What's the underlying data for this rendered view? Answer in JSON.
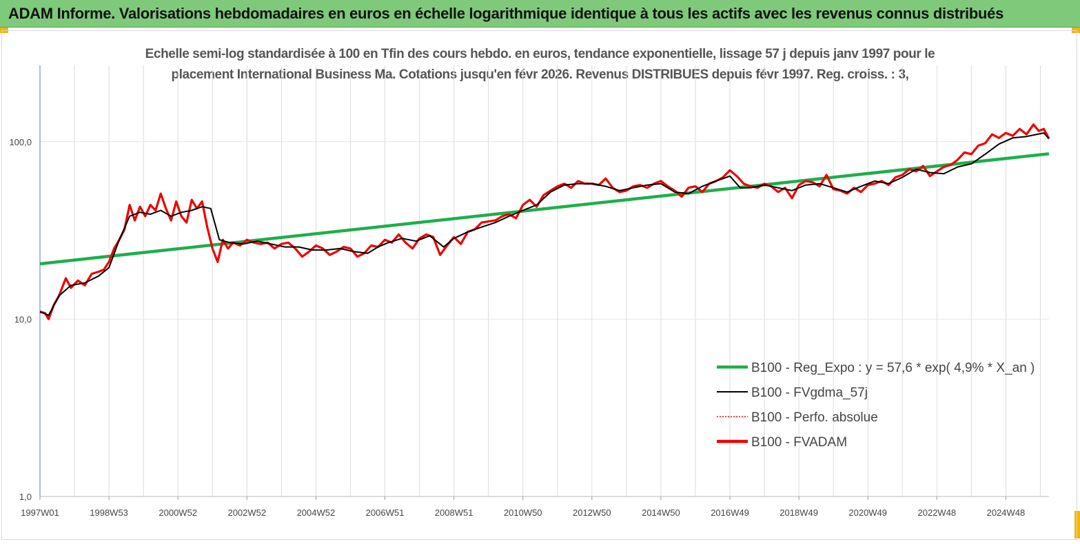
{
  "header": {
    "title": "ADAM Informe. Valorisations hebdomadaires en euros en échelle logarithmique identique à tous les actifs avec les revenus connus distribués"
  },
  "chart_data": {
    "type": "line",
    "title_line1": "Echelle semi-log standardisée à 100 en Tfin des cours hebdo. en euros, tendance exponentielle, lissage 57 j depuis janv 1997 pour le",
    "title_line2": "placement International Business Ma. Cotations jusqu'en févr 2026. Revenus DISTRIBUES depuis févr 1997. Reg. croiss. : 3,",
    "y_scale": "log",
    "ylim": [
      1,
      180
    ],
    "y_ticks": [
      {
        "value": 1,
        "label": "1,0"
      },
      {
        "value": 10,
        "label": "10,0"
      },
      {
        "value": 100,
        "label": "100,0"
      }
    ],
    "xlim": [
      1997.0,
      2026.25
    ],
    "x_ticks": [
      {
        "value": 1997.0,
        "label": "1997W01"
      },
      {
        "value": 1999.0,
        "label": "1998W53"
      },
      {
        "value": 2001.0,
        "label": "2000W52"
      },
      {
        "value": 2003.0,
        "label": "2002W52"
      },
      {
        "value": 2005.0,
        "label": "2004W52"
      },
      {
        "value": 2007.0,
        "label": "2006W51"
      },
      {
        "value": 2009.0,
        "label": "2008W51"
      },
      {
        "value": 2011.0,
        "label": "2010W50"
      },
      {
        "value": 2013.0,
        "label": "2012W50"
      },
      {
        "value": 2015.0,
        "label": "2014W50"
      },
      {
        "value": 2017.0,
        "label": "2016W49"
      },
      {
        "value": 2019.0,
        "label": "2018W49"
      },
      {
        "value": 2021.0,
        "label": "2020W49"
      },
      {
        "value": 2023.0,
        "label": "2022W48"
      },
      {
        "value": 2025.0,
        "label": "2024W48"
      }
    ],
    "grid": "vertical",
    "legend_position": "bottom-right",
    "series": [
      {
        "name": "B100 - Reg_Expo : y = 57,6 *  exp( 4,9% *  X_an )",
        "color": "#1fae4b",
        "style": "solid-thick",
        "x": [
          1997.0,
          2026.25
        ],
        "y": [
          20.5,
          85.5
        ]
      },
      {
        "name": "B100 - FVgdma_57j",
        "color": "#000000",
        "style": "solid-thin",
        "x": [
          1997.0,
          1997.25,
          1997.55,
          1997.9,
          1998.3,
          1998.7,
          1999.0,
          1999.3,
          1999.6,
          1999.9,
          2000.2,
          2000.5,
          2000.8,
          2001.1,
          2001.4,
          2001.7,
          2001.95,
          2002.2,
          2002.5,
          2002.9,
          2003.3,
          2003.7,
          2004.1,
          2004.5,
          2004.9,
          2005.3,
          2005.7,
          2006.1,
          2006.5,
          2006.8,
          2007.1,
          2007.5,
          2007.9,
          2008.3,
          2008.7,
          2009.0,
          2009.4,
          2009.8,
          2010.2,
          2010.6,
          2011.0,
          2011.4,
          2011.8,
          2012.2,
          2012.6,
          2013.0,
          2013.4,
          2013.8,
          2014.2,
          2014.6,
          2015.0,
          2015.4,
          2015.8,
          2016.2,
          2016.6,
          2017.0,
          2017.3,
          2017.6,
          2018.0,
          2018.4,
          2018.8,
          2019.2,
          2019.6,
          2020.0,
          2020.4,
          2020.8,
          2021.2,
          2021.6,
          2022.0,
          2022.4,
          2022.8,
          2023.2,
          2023.6,
          2024.0,
          2024.4,
          2024.8,
          2025.2,
          2025.6,
          2025.9,
          2026.1,
          2026.25
        ],
        "y": [
          11,
          10.5,
          13.5,
          15.5,
          16,
          17.5,
          19.5,
          28,
          38,
          40,
          39,
          41,
          38,
          40,
          41,
          43,
          42,
          28,
          27,
          26.5,
          27.5,
          26.5,
          25.5,
          25.5,
          24.5,
          24.5,
          25,
          24,
          23.5,
          25.5,
          27,
          28.5,
          27.5,
          29.5,
          25.5,
          28.5,
          31,
          33,
          35,
          38,
          41,
          44,
          52,
          57,
          58,
          58,
          56,
          53,
          55,
          57,
          58,
          52,
          51,
          56,
          60,
          64,
          55,
          55,
          57,
          55,
          53,
          57,
          58,
          55,
          52,
          56,
          60,
          58,
          63,
          70,
          67,
          66,
          72,
          75,
          85,
          97,
          105,
          107,
          110,
          112,
          104
        ]
      },
      {
        "name": "B100 - Perfo. absolue",
        "color": "#ff0000",
        "style": "dotted",
        "x": [],
        "y": []
      },
      {
        "name": "B100 - FVADAM",
        "color": "#ee0000",
        "style": "solid-thick",
        "x": [
          1997.0,
          1997.15,
          1997.25,
          1997.4,
          1997.55,
          1997.75,
          1997.9,
          1998.1,
          1998.3,
          1998.5,
          1998.7,
          1998.85,
          1999.0,
          1999.15,
          1999.3,
          1999.45,
          1999.6,
          1999.75,
          1999.9,
          2000.05,
          2000.2,
          2000.35,
          2000.5,
          2000.65,
          2000.8,
          2000.95,
          2001.1,
          2001.25,
          2001.4,
          2001.55,
          2001.7,
          2001.85,
          2002.0,
          2002.15,
          2002.3,
          2002.45,
          2002.6,
          2002.8,
          2003.0,
          2003.2,
          2003.4,
          2003.6,
          2003.8,
          2004.0,
          2004.2,
          2004.4,
          2004.6,
          2004.8,
          2005.0,
          2005.2,
          2005.4,
          2005.6,
          2005.8,
          2006.0,
          2006.2,
          2006.4,
          2006.6,
          2006.8,
          2007.0,
          2007.2,
          2007.4,
          2007.6,
          2007.8,
          2008.0,
          2008.2,
          2008.4,
          2008.6,
          2008.8,
          2009.0,
          2009.2,
          2009.4,
          2009.6,
          2009.8,
          2010.0,
          2010.2,
          2010.4,
          2010.6,
          2010.8,
          2011.0,
          2011.2,
          2011.4,
          2011.6,
          2011.8,
          2012.0,
          2012.2,
          2012.4,
          2012.6,
          2012.8,
          2013.0,
          2013.2,
          2013.4,
          2013.6,
          2013.8,
          2014.0,
          2014.2,
          2014.4,
          2014.6,
          2014.8,
          2015.0,
          2015.2,
          2015.4,
          2015.6,
          2015.8,
          2016.0,
          2016.2,
          2016.4,
          2016.6,
          2016.8,
          2017.0,
          2017.2,
          2017.4,
          2017.6,
          2017.8,
          2018.0,
          2018.2,
          2018.4,
          2018.6,
          2018.8,
          2019.0,
          2019.2,
          2019.4,
          2019.6,
          2019.8,
          2020.0,
          2020.2,
          2020.4,
          2020.6,
          2020.8,
          2021.0,
          2021.2,
          2021.4,
          2021.6,
          2021.8,
          2022.0,
          2022.2,
          2022.4,
          2022.6,
          2022.8,
          2023.0,
          2023.2,
          2023.4,
          2023.6,
          2023.8,
          2024.0,
          2024.2,
          2024.4,
          2024.6,
          2024.8,
          2025.0,
          2025.2,
          2025.4,
          2025.6,
          2025.8,
          2025.95,
          2026.1,
          2026.25
        ],
        "y": [
          11,
          10.8,
          10,
          12,
          13.5,
          17,
          15,
          16.5,
          15.5,
          18,
          18.5,
          19,
          21,
          25,
          28,
          32,
          44,
          36,
          43,
          38,
          44,
          41,
          51,
          42,
          36,
          46,
          38,
          35,
          47,
          42,
          46,
          33,
          25,
          21,
          28,
          25,
          27,
          26,
          28,
          27,
          26.5,
          27,
          25,
          26.5,
          27,
          25,
          22.5,
          24,
          26,
          25,
          23,
          24,
          25.5,
          25,
          22.5,
          23.5,
          26,
          25.5,
          28,
          27,
          30,
          27,
          25,
          28.5,
          30,
          29,
          23,
          26,
          29,
          26.5,
          31,
          32,
          35,
          35.5,
          36,
          38,
          39,
          37,
          44,
          47,
          43,
          50,
          53,
          56,
          58,
          55,
          60,
          58,
          58,
          57,
          62,
          55,
          52,
          53,
          56,
          57,
          55,
          58,
          60,
          56,
          53,
          49,
          55,
          56,
          52,
          58,
          60,
          63,
          69,
          64,
          58,
          56,
          55,
          58,
          56,
          52,
          55,
          48,
          57,
          60,
          59,
          56,
          65,
          54,
          53,
          51,
          55,
          52,
          57,
          58,
          60,
          57,
          63,
          65,
          70,
          68,
          73,
          64,
          68,
          72,
          74,
          79,
          87,
          85,
          95,
          98,
          110,
          105,
          112,
          108,
          118,
          110,
          125,
          115,
          118,
          104
        ]
      }
    ]
  }
}
